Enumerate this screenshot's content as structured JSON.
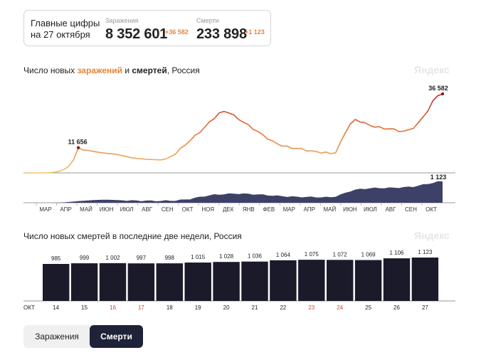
{
  "summary": {
    "title_line1": "Главные цифры",
    "title_line2": "на 27 октября",
    "infections": {
      "label": "Заражения",
      "value": "8 352 601",
      "delta": "+36 582"
    },
    "deaths": {
      "label": "Смерти",
      "value": "233 898",
      "delta": "+1 123"
    }
  },
  "chart1": {
    "title_pre": "Число новых ",
    "title_inf": "заражений",
    "title_mid": " и ",
    "title_death": "смертей",
    "title_post": ", Россия",
    "watermark": "Яндекс"
  },
  "chart2": {
    "title": "Число новых смертей в последние две недели, Россия",
    "watermark": "Яндекс"
  },
  "tabs": {
    "infections": "Заражения",
    "deaths": "Смерти"
  },
  "colors": {
    "accent": "#e8833a",
    "bar": "#1a1a2a",
    "weekend": "#d9412c",
    "area": "#3d4168",
    "tab_active": "#1f2238"
  },
  "chart_data": [
    {
      "type": "line",
      "title": "Число новых заражений и смертей, Россия",
      "months": [
        "МАР",
        "АПР",
        "МАЙ",
        "ИЮН",
        "ИЮЛ",
        "АВГ",
        "СЕН",
        "ОКТ",
        "НОЯ",
        "ДЕК",
        "ЯНВ",
        "ФЕВ",
        "МАР",
        "АПР",
        "МАЙ",
        "ИЮН",
        "ИЮЛ",
        "АВГ",
        "СЕН",
        "ОКТ"
      ],
      "series": [
        {
          "name": "Заражения",
          "annotations": [
            {
              "label": "11 656",
              "index": 11,
              "value": 11656
            },
            {
              "label": "36 582",
              "index": 86,
              "value": 36582
            }
          ],
          "values": [
            0,
            0,
            0,
            0,
            0,
            50,
            300,
            700,
            1500,
            3000,
            6000,
            11656,
            10600,
            10400,
            10000,
            9600,
            9300,
            9000,
            8800,
            8500,
            8000,
            7500,
            7000,
            6700,
            6500,
            6300,
            6200,
            6100,
            6000,
            6500,
            7500,
            9000,
            11000,
            13000,
            15000,
            17000,
            19000,
            21000,
            23500,
            25500,
            27500,
            28500,
            28000,
            26500,
            25000,
            23500,
            22000,
            20500,
            19000,
            17500,
            16000,
            14500,
            13500,
            12600,
            12000,
            11600,
            11300,
            11000,
            10500,
            10000,
            9800,
            9500,
            9300,
            9000,
            9500,
            14000,
            19000,
            22500,
            24500,
            24000,
            23000,
            22000,
            21500,
            21000,
            20500,
            20500,
            20000,
            19500,
            19200,
            19800,
            21000,
            23000,
            26000,
            29000,
            33000,
            36000,
            36582
          ]
        },
        {
          "name": "Смерти",
          "annotations": [
            {
              "label": "1 123",
              "index": 86,
              "value": 1123
            }
          ],
          "values": [
            0,
            0,
            0,
            0,
            0,
            0,
            5,
            10,
            20,
            40,
            60,
            90,
            100,
            120,
            140,
            150,
            160,
            160,
            150,
            140,
            130,
            120,
            110,
            110,
            110,
            105,
            100,
            100,
            100,
            105,
            110,
            120,
            140,
            170,
            200,
            250,
            300,
            350,
            390,
            420,
            440,
            460,
            470,
            480,
            480,
            470,
            460,
            450,
            440,
            420,
            400,
            380,
            360,
            350,
            330,
            320,
            310,
            310,
            300,
            300,
            300,
            290,
            290,
            300,
            340,
            420,
            520,
            620,
            680,
            720,
            740,
            760,
            770,
            780,
            780,
            780,
            790,
            800,
            810,
            830,
            850,
            900,
            950,
            1000,
            1050,
            1100,
            1123
          ]
        }
      ]
    },
    {
      "type": "bar",
      "title": "Число новых смертей в последние две недели, Россия",
      "month_label": "ОКТ",
      "categories": [
        "14",
        "15",
        "16",
        "17",
        "18",
        "19",
        "20",
        "21",
        "22",
        "23",
        "24",
        "25",
        "26",
        "27"
      ],
      "weekend_categories": [
        "16",
        "17",
        "23",
        "24"
      ],
      "values": [
        985,
        999,
        1002,
        997,
        998,
        1015,
        1028,
        1036,
        1064,
        1075,
        1072,
        1069,
        1106,
        1123
      ],
      "value_labels": [
        "985",
        "999",
        "1 002",
        "997",
        "998",
        "1 015",
        "1 028",
        "1 036",
        "1 064",
        "1 075",
        "1 072",
        "1 069",
        "1 106",
        "1 123"
      ],
      "ylim": [
        0,
        1123
      ]
    }
  ]
}
